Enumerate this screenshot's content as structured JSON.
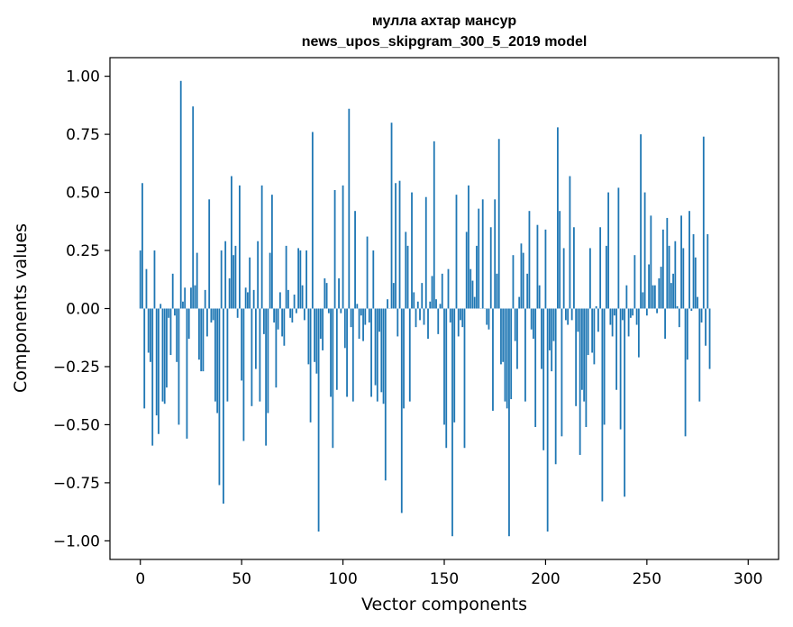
{
  "chart_data": {
    "type": "bar",
    "title": "мулла ахтар мансур",
    "subtitle": "news_upos_skipgram_300_5_2019 model",
    "xlabel": "Vector components",
    "ylabel": "Components values",
    "xlim": [
      -15,
      315
    ],
    "ylim": [
      -1.08,
      1.08
    ],
    "x_ticks": [
      0,
      50,
      100,
      150,
      200,
      250,
      300
    ],
    "x_tick_labels": [
      "0",
      "50",
      "100",
      "150",
      "200",
      "250",
      "300"
    ],
    "y_ticks": [
      -1.0,
      -0.75,
      -0.5,
      -0.25,
      0.0,
      0.25,
      0.5,
      0.75,
      1.0
    ],
    "y_tick_labels": [
      "−1.00",
      "−0.75",
      "−0.50",
      "−0.25",
      "0.00",
      "0.25",
      "0.50",
      "0.75",
      "1.00"
    ],
    "bar_color": "#1f77b4",
    "grid": false,
    "series": [
      {
        "values": [
          0.25,
          0.54,
          -0.43,
          0.17,
          -0.19,
          -0.23,
          -0.59,
          0.25,
          -0.46,
          -0.54,
          0.02,
          -0.4,
          -0.41,
          -0.34,
          -0.04,
          -0.2,
          0.15,
          -0.03,
          -0.23,
          -0.5,
          0.98,
          0.03,
          0.09,
          -0.56,
          -0.13,
          0.09,
          0.87,
          0.1,
          0.24,
          -0.22,
          -0.27,
          -0.27,
          0.08,
          -0.12,
          0.47,
          -0.06,
          -0.05,
          -0.4,
          -0.45,
          -0.76,
          0.25,
          -0.84,
          0.29,
          -0.4,
          0.13,
          0.57,
          0.23,
          0.27,
          -0.04,
          0.53,
          -0.31,
          -0.57,
          0.09,
          0.07,
          0.22,
          -0.42,
          0.08,
          -0.26,
          0.29,
          -0.4,
          0.53,
          -0.11,
          -0.59,
          -0.45,
          0.24,
          0.49,
          -0.06,
          -0.34,
          -0.09,
          0.07,
          -0.12,
          -0.16,
          0.27,
          0.08,
          -0.04,
          -0.06,
          0.06,
          -0.02,
          0.26,
          0.25,
          0.1,
          -0.05,
          0.25,
          -0.24,
          -0.49,
          0.76,
          -0.23,
          -0.28,
          -0.96,
          -0.13,
          -0.18,
          0.13,
          0.11,
          -0.02,
          -0.38,
          -0.6,
          0.51,
          -0.35,
          0.13,
          -0.02,
          0.53,
          -0.17,
          -0.38,
          0.86,
          -0.08,
          -0.4,
          0.42,
          0.02,
          -0.13,
          -0.03,
          -0.14,
          -0.07,
          0.31,
          -0.06,
          -0.38,
          0.25,
          -0.33,
          -0.4,
          -0.1,
          -0.36,
          -0.41,
          -0.74,
          0.04,
          0.0,
          0.8,
          0.11,
          0.54,
          -0.12,
          0.55,
          -0.88,
          -0.43,
          0.33,
          0.27,
          -0.4,
          0.5,
          0.07,
          -0.08,
          0.03,
          -0.05,
          0.11,
          -0.07,
          0.48,
          -0.13,
          0.03,
          0.14,
          0.72,
          0.04,
          -0.11,
          0.02,
          0.15,
          -0.5,
          -0.6,
          0.17,
          -0.06,
          -0.98,
          -0.49,
          0.49,
          -0.12,
          -0.05,
          -0.08,
          -0.6,
          0.33,
          0.53,
          0.17,
          0.12,
          0.05,
          0.27,
          0.43,
          0.0,
          0.47,
          0.0,
          -0.07,
          -0.09,
          0.35,
          -0.44,
          0.47,
          0.15,
          0.73,
          -0.24,
          -0.23,
          -0.4,
          -0.43,
          -0.98,
          -0.39,
          0.23,
          -0.14,
          -0.26,
          0.05,
          0.28,
          0.24,
          -0.4,
          0.15,
          0.42,
          -0.09,
          -0.13,
          -0.51,
          0.36,
          0.1,
          -0.26,
          -0.61,
          0.34,
          -0.96,
          -0.18,
          -0.27,
          -0.14,
          -0.67,
          0.78,
          0.42,
          -0.55,
          0.26,
          -0.05,
          -0.07,
          0.57,
          -0.05,
          0.35,
          -0.42,
          -0.1,
          -0.63,
          -0.35,
          -0.4,
          -0.51,
          -0.2,
          0.26,
          -0.19,
          -0.24,
          0.01,
          -0.1,
          0.35,
          -0.83,
          -0.5,
          0.27,
          0.5,
          -0.07,
          -0.12,
          -0.03,
          -0.35,
          0.52,
          -0.52,
          -0.05,
          -0.81,
          0.1,
          -0.12,
          -0.04,
          -0.03,
          0.23,
          -0.07,
          -0.21,
          0.75,
          0.07,
          0.5,
          -0.03,
          0.19,
          0.4,
          0.1,
          0.1,
          -0.02,
          0.13,
          0.18,
          0.34,
          -0.13,
          0.39,
          0.27,
          0.11,
          0.15,
          0.29,
          0.01,
          -0.08,
          0.4,
          0.26,
          -0.55,
          -0.22,
          0.42,
          -0.01,
          0.32,
          0.22,
          0.05,
          -0.4,
          -0.06,
          0.74,
          -0.16,
          0.32,
          -0.26
        ]
      }
    ]
  }
}
